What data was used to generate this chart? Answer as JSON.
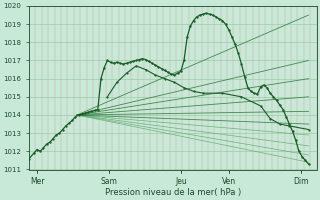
{
  "xlabel": "Pression niveau de la mer( hPa )",
  "ylim": [
    1011,
    1020
  ],
  "xlim": [
    0,
    180
  ],
  "yticks": [
    1011,
    1012,
    1013,
    1014,
    1015,
    1016,
    1017,
    1018,
    1019,
    1020
  ],
  "xtick_positions": [
    5,
    50,
    95,
    125,
    170
  ],
  "xtick_labels": [
    "Mer",
    "Sam",
    "Jeu",
    "Ven",
    "Dim"
  ],
  "bg_color": "#c8e8d8",
  "plot_bg_color": "#c8e8d8",
  "line_color": "#1a5c28",
  "fan_color": "#2a7a38",
  "fan_light_color": "#5aaa6a",
  "grid_v_color": "#d4a0a0",
  "grid_h_color": "#90c898",
  "fan_origin_x": 30,
  "fan_origin_y": 1014.0,
  "fan_end_x": 175,
  "fan_endpoints": [
    1011.4,
    1011.8,
    1012.3,
    1012.9,
    1013.5,
    1014.2,
    1015.0,
    1016.0,
    1017.0,
    1019.5
  ],
  "main_curve": [
    [
      0,
      1011.6
    ],
    [
      3,
      1011.9
    ],
    [
      5,
      1012.1
    ],
    [
      7,
      1012.0
    ],
    [
      9,
      1012.2
    ],
    [
      11,
      1012.4
    ],
    [
      13,
      1012.5
    ],
    [
      15,
      1012.7
    ],
    [
      17,
      1012.9
    ],
    [
      19,
      1013.0
    ],
    [
      21,
      1013.2
    ],
    [
      23,
      1013.4
    ],
    [
      25,
      1013.55
    ],
    [
      27,
      1013.7
    ],
    [
      29,
      1013.9
    ],
    [
      31,
      1014.0
    ],
    [
      33,
      1014.05
    ],
    [
      35,
      1014.1
    ],
    [
      37,
      1014.15
    ],
    [
      39,
      1014.2
    ],
    [
      41,
      1014.25
    ],
    [
      43,
      1014.3
    ],
    [
      45,
      1016.0
    ],
    [
      47,
      1016.6
    ],
    [
      49,
      1017.0
    ],
    [
      51,
      1016.9
    ],
    [
      53,
      1016.85
    ],
    [
      55,
      1016.9
    ],
    [
      57,
      1016.85
    ],
    [
      59,
      1016.8
    ],
    [
      61,
      1016.85
    ],
    [
      63,
      1016.9
    ],
    [
      65,
      1016.95
    ],
    [
      67,
      1017.0
    ],
    [
      69,
      1017.05
    ],
    [
      71,
      1017.1
    ],
    [
      73,
      1017.05
    ],
    [
      75,
      1016.95
    ],
    [
      77,
      1016.85
    ],
    [
      79,
      1016.75
    ],
    [
      81,
      1016.65
    ],
    [
      83,
      1016.55
    ],
    [
      85,
      1016.45
    ],
    [
      87,
      1016.35
    ],
    [
      89,
      1016.25
    ],
    [
      91,
      1016.2
    ],
    [
      93,
      1016.3
    ],
    [
      95,
      1016.4
    ],
    [
      97,
      1017.0
    ],
    [
      99,
      1018.3
    ],
    [
      101,
      1018.9
    ],
    [
      103,
      1019.2
    ],
    [
      105,
      1019.4
    ],
    [
      107,
      1019.5
    ],
    [
      109,
      1019.55
    ],
    [
      111,
      1019.6
    ],
    [
      113,
      1019.55
    ],
    [
      115,
      1019.5
    ],
    [
      117,
      1019.4
    ],
    [
      119,
      1019.3
    ],
    [
      121,
      1019.2
    ],
    [
      123,
      1019.0
    ],
    [
      125,
      1018.7
    ],
    [
      127,
      1018.3
    ],
    [
      129,
      1017.9
    ],
    [
      131,
      1017.4
    ],
    [
      133,
      1016.8
    ],
    [
      135,
      1016.1
    ],
    [
      137,
      1015.5
    ],
    [
      139,
      1015.3
    ],
    [
      141,
      1015.2
    ],
    [
      143,
      1015.15
    ],
    [
      145,
      1015.55
    ],
    [
      147,
      1015.65
    ],
    [
      149,
      1015.5
    ],
    [
      151,
      1015.2
    ],
    [
      153,
      1015.0
    ],
    [
      155,
      1014.8
    ],
    [
      157,
      1014.55
    ],
    [
      159,
      1014.3
    ],
    [
      161,
      1013.9
    ],
    [
      163,
      1013.5
    ],
    [
      165,
      1013.1
    ],
    [
      167,
      1012.6
    ],
    [
      169,
      1012.0
    ],
    [
      171,
      1011.7
    ],
    [
      173,
      1011.5
    ],
    [
      175,
      1011.3
    ]
  ],
  "second_curve": [
    [
      49,
      1015.0
    ],
    [
      55,
      1015.8
    ],
    [
      61,
      1016.3
    ],
    [
      67,
      1016.7
    ],
    [
      73,
      1016.5
    ],
    [
      79,
      1016.2
    ],
    [
      85,
      1016.0
    ],
    [
      91,
      1015.8
    ],
    [
      97,
      1015.5
    ],
    [
      103,
      1015.3
    ],
    [
      109,
      1015.2
    ],
    [
      121,
      1015.2
    ],
    [
      133,
      1015.0
    ],
    [
      145,
      1014.5
    ],
    [
      151,
      1013.8
    ],
    [
      157,
      1013.5
    ],
    [
      163,
      1013.4
    ],
    [
      175,
      1013.2
    ]
  ]
}
